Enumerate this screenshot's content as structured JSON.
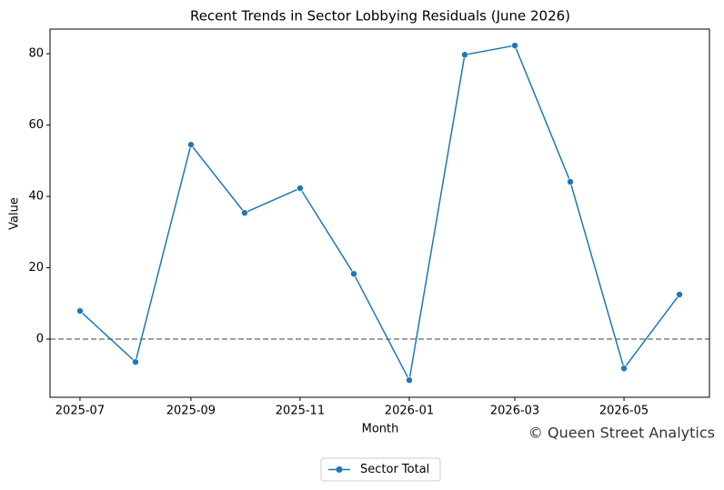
{
  "chart_data": {
    "type": "line",
    "title": "Recent Trends in Sector Lobbying Residuals (June 2026)",
    "x_label": "Month",
    "y_label": "Value",
    "x": [
      "2025-07",
      "2025-08",
      "2025-09",
      "2025-10",
      "2025-11",
      "2025-12",
      "2026-01",
      "2026-02",
      "2026-03",
      "2026-04",
      "2026-05",
      "2026-06"
    ],
    "series": [
      {
        "name": "Sector Total",
        "color": "#1f77b4",
        "values": [
          7.9,
          -6.4,
          54.5,
          35.4,
          42.3,
          18.3,
          -11.5,
          79.7,
          82.3,
          44.1,
          -8.2,
          12.5
        ]
      }
    ],
    "xticks": [
      "2025-07",
      "2025-09",
      "2025-11",
      "2026-01",
      "2026-03",
      "2026-05"
    ],
    "ylim": [
      -16.3,
      86.9
    ],
    "yticks": [
      0,
      20,
      40,
      60,
      80
    ],
    "reference_line": {
      "value": 0,
      "color": "#808080",
      "style": "dashed"
    },
    "grid": false,
    "legend": "bottom",
    "annotation": "© Queen Street Analytics"
  }
}
